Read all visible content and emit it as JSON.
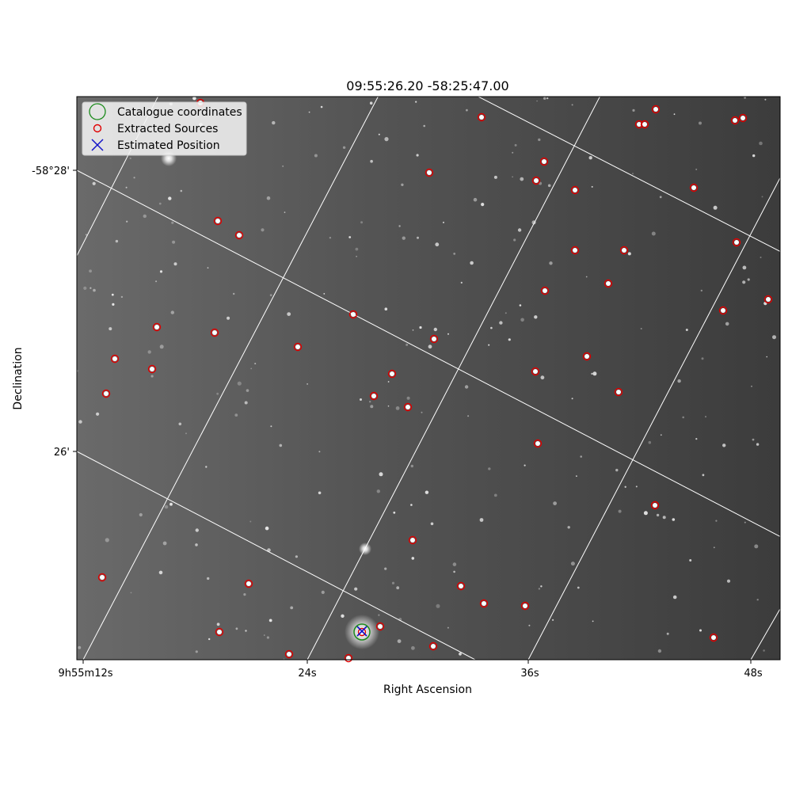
{
  "chart_data": {
    "type": "scatter",
    "title": "09:55:26.20 -58:25:47.00",
    "xlabel": "Right Ascension",
    "ylabel": "Declination",
    "xticks": [
      "9h55m12s",
      "24s",
      "36s",
      "48s"
    ],
    "yticks": [
      "-58°28'",
      "26'"
    ],
    "legend_position": "top-left",
    "grid": true,
    "legend": [
      {
        "label": "Catalogue coordinates",
        "marker": "circle-large",
        "color": "#1a8a1a"
      },
      {
        "label": "Extracted Sources",
        "marker": "circle-small",
        "color": "#e00000"
      },
      {
        "label": "Estimated Position",
        "marker": "x",
        "color": "#1010c8"
      }
    ],
    "catalogue_position": [
      457,
      798
    ],
    "estimated_position": [
      457,
      797
    ],
    "extracted_sources": [
      [
        608,
        148
      ],
      [
        828,
        138
      ],
      [
        807,
        157
      ],
      [
        814,
        157
      ],
      [
        928,
        152
      ],
      [
        938,
        149
      ],
      [
        687,
        204
      ],
      [
        542,
        218
      ],
      [
        677,
        228
      ],
      [
        726,
        240
      ],
      [
        876,
        237
      ],
      [
        275,
        279
      ],
      [
        302,
        297
      ],
      [
        930,
        306
      ],
      [
        726,
        316
      ],
      [
        788,
        316
      ],
      [
        768,
        358
      ],
      [
        688,
        367
      ],
      [
        913,
        392
      ],
      [
        970,
        378
      ],
      [
        446,
        397
      ],
      [
        198,
        413
      ],
      [
        271,
        420
      ],
      [
        548,
        428
      ],
      [
        376,
        438
      ],
      [
        145,
        453
      ],
      [
        741,
        450
      ],
      [
        192,
        466
      ],
      [
        495,
        472
      ],
      [
        676,
        469
      ],
      [
        134,
        497
      ],
      [
        472,
        500
      ],
      [
        781,
        495
      ],
      [
        515,
        514
      ],
      [
        679,
        560
      ],
      [
        827,
        638
      ],
      [
        521,
        682
      ],
      [
        129,
        729
      ],
      [
        314,
        737
      ],
      [
        582,
        740
      ],
      [
        611,
        762
      ],
      [
        663,
        765
      ],
      [
        480,
        791
      ],
      [
        277,
        798
      ],
      [
        901,
        805
      ],
      [
        547,
        816
      ],
      [
        365,
        826
      ],
      [
        440,
        831
      ],
      [
        457,
        798
      ],
      [
        253,
        130
      ]
    ]
  }
}
